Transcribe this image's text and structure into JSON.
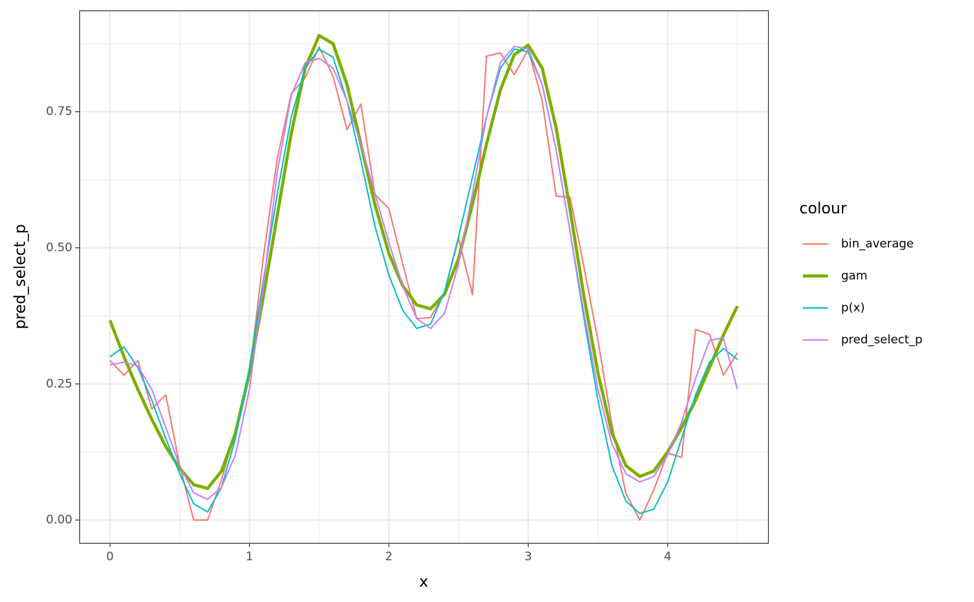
{
  "chart_data": {
    "type": "line",
    "x_label": "x",
    "y_label": "pred_select_p",
    "legend_title": "colour",
    "legend": "right",
    "xlim": [
      -0.22,
      4.72
    ],
    "ylim": [
      -0.042,
      0.936
    ],
    "xticks": [
      0,
      1,
      2,
      3,
      4
    ],
    "yticks": [
      {
        "value": 0,
        "label": "0.00"
      },
      {
        "value": 0.25,
        "label": "0.25"
      },
      {
        "value": 0.5,
        "label": "0.50"
      },
      {
        "value": 0.75,
        "label": "0.75"
      }
    ],
    "x_minor_ticks": [
      0.5,
      1.5,
      2.5,
      3.5,
      4.5
    ],
    "y_minor_ticks": [
      0.125,
      0.375,
      0.625,
      0.875
    ],
    "grid": true,
    "x": [
      0,
      0.1,
      0.2,
      0.3,
      0.4,
      0.5,
      0.6,
      0.7,
      0.8,
      0.9,
      1.0,
      1.1,
      1.2,
      1.3,
      1.4,
      1.5,
      1.6,
      1.7,
      1.8,
      1.9,
      2.0,
      2.1,
      2.2,
      2.3,
      2.4,
      2.5,
      2.6,
      2.7,
      2.8,
      2.9,
      3.0,
      3.1,
      3.2,
      3.3,
      3.4,
      3.5,
      3.6,
      3.7,
      3.8,
      3.9,
      4.0,
      4.1,
      4.2,
      4.3,
      4.4,
      4.5
    ],
    "series": [
      {
        "name": "bin_average",
        "color": "#F8766D",
        "linewidth": 2,
        "values": [
          0.293,
          0.266,
          0.293,
          0.204,
          0.23,
          0.1,
          0,
          0,
          0.074,
          0.164,
          0.266,
          0.483,
          0.664,
          0.783,
          0.812,
          0.869,
          0.815,
          0.717,
          0.764,
          0.598,
          0.572,
          0.47,
          0.37,
          0.372,
          0.419,
          0.517,
          0.414,
          0.852,
          0.858,
          0.818,
          0.864,
          0.77,
          0.595,
          0.593,
          0.464,
          0.33,
          0.176,
          0.049,
          0,
          0.055,
          0.123,
          0.115,
          0.35,
          0.341,
          0.266,
          0.307
        ]
      },
      {
        "name": "gam",
        "color": "#7CAE00",
        "linewidth": 4.5,
        "values": [
          0.367,
          0.3,
          0.24,
          0.185,
          0.135,
          0.095,
          0.065,
          0.058,
          0.09,
          0.16,
          0.27,
          0.41,
          0.56,
          0.71,
          0.83,
          0.89,
          0.875,
          0.8,
          0.69,
          0.58,
          0.49,
          0.43,
          0.395,
          0.388,
          0.415,
          0.48,
          0.58,
          0.69,
          0.79,
          0.855,
          0.872,
          0.83,
          0.72,
          0.57,
          0.41,
          0.27,
          0.16,
          0.1,
          0.08,
          0.09,
          0.125,
          0.17,
          0.22,
          0.28,
          0.34,
          0.393
        ]
      },
      {
        "name": "p(x)",
        "color": "#00BFC4",
        "linewidth": 2,
        "values": [
          0.3,
          0.318,
          0.28,
          0.22,
          0.15,
          0.085,
          0.03,
          0.015,
          0.06,
          0.15,
          0.28,
          0.44,
          0.6,
          0.74,
          0.83,
          0.865,
          0.85,
          0.77,
          0.66,
          0.54,
          0.45,
          0.385,
          0.352,
          0.36,
          0.42,
          0.52,
          0.63,
          0.74,
          0.83,
          0.865,
          0.86,
          0.8,
          0.68,
          0.53,
          0.37,
          0.22,
          0.1,
          0.035,
          0.012,
          0.02,
          0.07,
          0.15,
          0.23,
          0.29,
          0.315,
          0.295
        ]
      },
      {
        "name": "pred_select_p",
        "color": "#C77CFF",
        "linewidth": 2,
        "values": [
          0.285,
          0.29,
          0.283,
          0.24,
          0.17,
          0.1,
          0.05,
          0.038,
          0.06,
          0.12,
          0.24,
          0.43,
          0.64,
          0.78,
          0.84,
          0.848,
          0.83,
          0.77,
          0.69,
          0.6,
          0.51,
          0.43,
          0.37,
          0.352,
          0.38,
          0.47,
          0.6,
          0.74,
          0.84,
          0.87,
          0.865,
          0.8,
          0.68,
          0.53,
          0.38,
          0.24,
          0.14,
          0.085,
          0.07,
          0.08,
          0.12,
          0.18,
          0.26,
          0.33,
          0.335,
          0.24
        ]
      }
    ]
  }
}
